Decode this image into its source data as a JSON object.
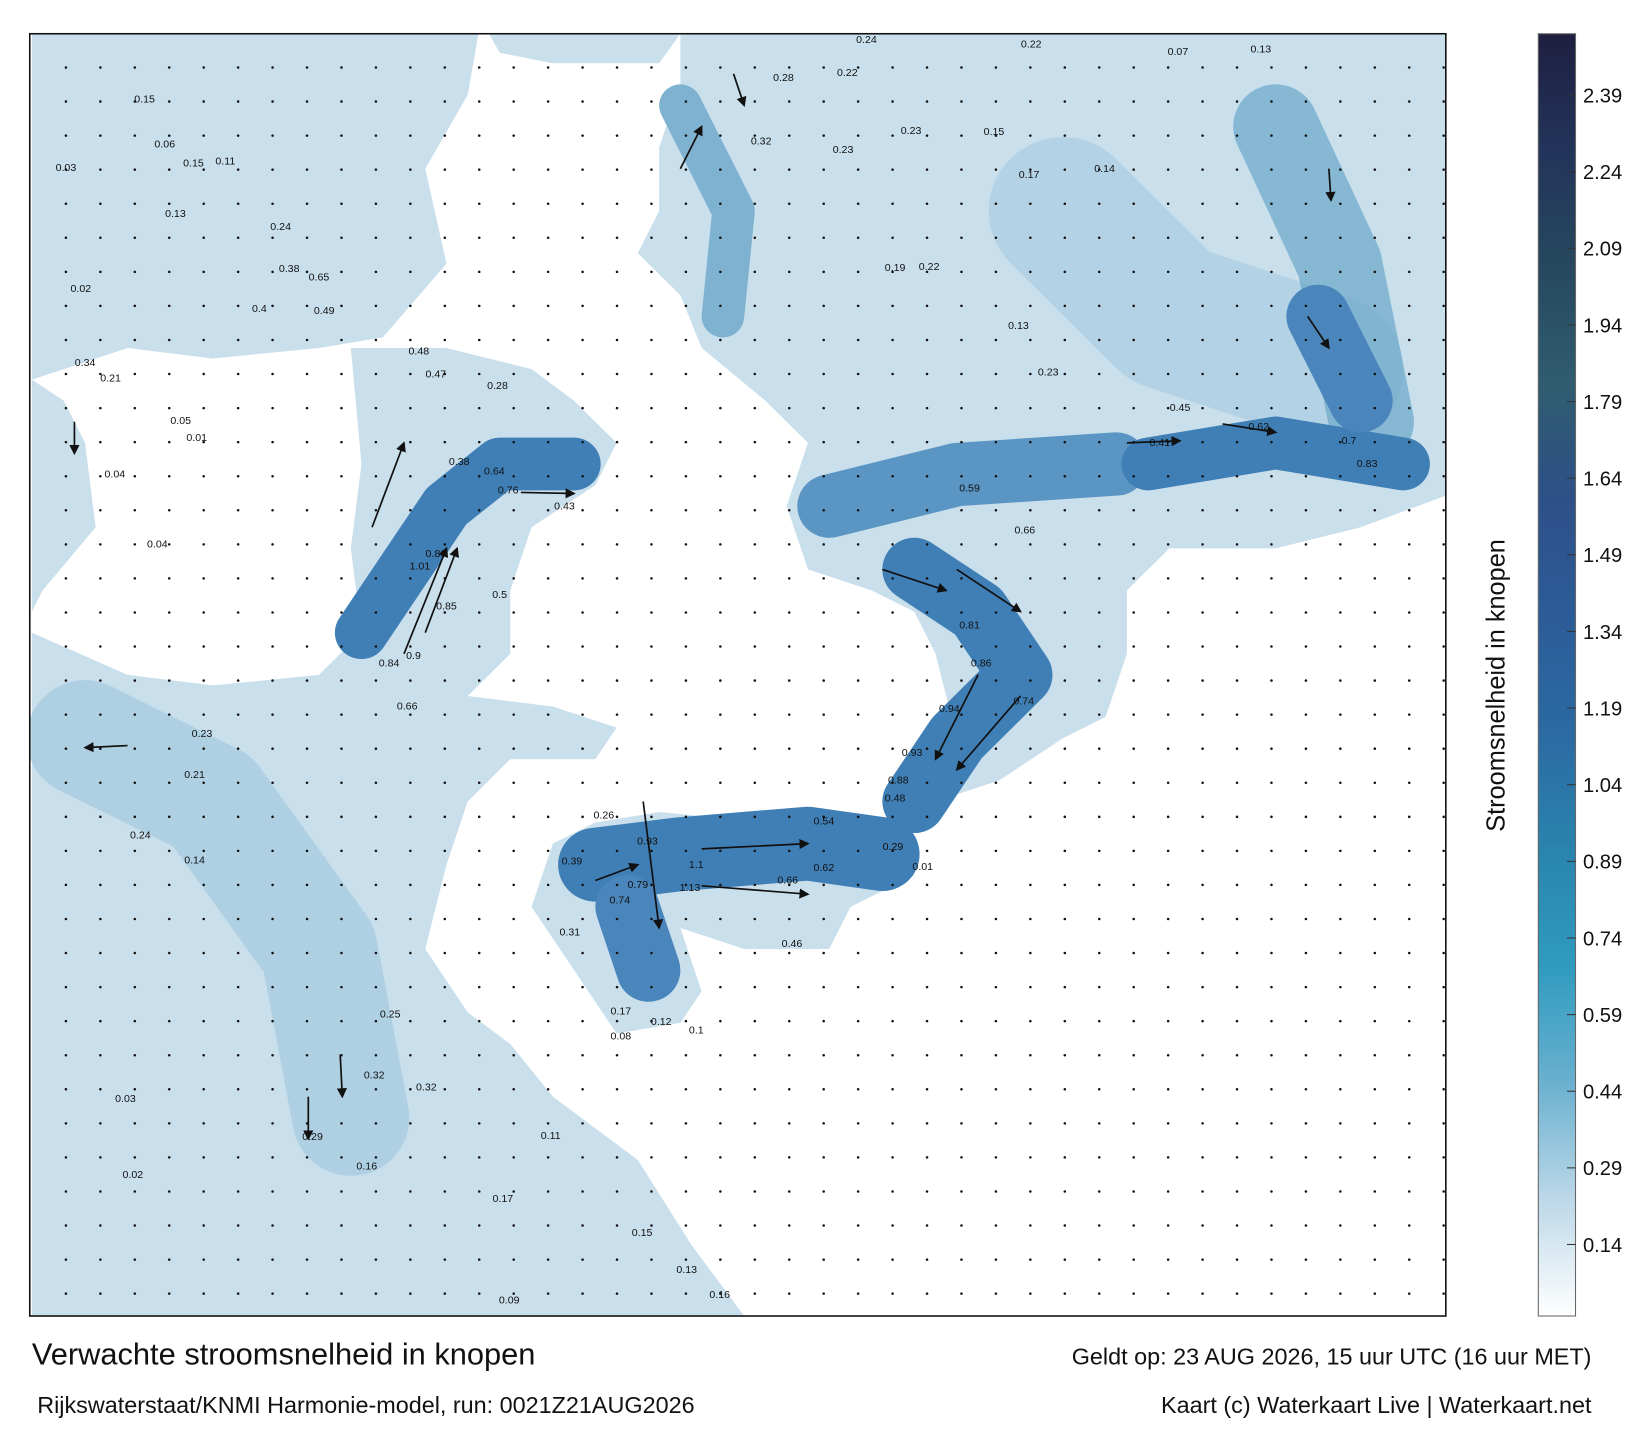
{
  "title": "Verwachte stroomsnelheid in knopen",
  "valid_time": "Geldt op: 23 AUG 2026, 15 uur UTC (16 uur MET)",
  "source": "Rijkswaterstaat/KNMI Harmonie-model, run: 0021Z21AUG2026",
  "credit": "Kaart (c) Waterkaart Live | Waterkaart.net",
  "colorbar": {
    "label": "Stroomsnelheid in knopen",
    "range": [
      0,
      2.51
    ],
    "ticks": [
      0.14,
      0.29,
      0.44,
      0.59,
      0.74,
      0.89,
      1.04,
      1.19,
      1.34,
      1.49,
      1.64,
      1.79,
      1.94,
      2.09,
      2.24,
      2.39
    ],
    "colors": [
      "#ffffff",
      "#bcd8e8",
      "#6ab0cf",
      "#2f9bbf",
      "#2a84ad",
      "#2b6aa3",
      "#2c5c98",
      "#2e5088",
      "#2f5d6f",
      "#27485e",
      "#22345a",
      "#1f1f40"
    ]
  },
  "map_labels": [
    0.15,
    0.06,
    0.03,
    0.15,
    0.11,
    0.13,
    0.24,
    0.38,
    0.65,
    0.4,
    0.49,
    0.02,
    0.34,
    0.21,
    0.05,
    0.01,
    0.04,
    0.04,
    0.48,
    0.47,
    0.28,
    0.38,
    0.64,
    0.76,
    0.43,
    1.01,
    0.86,
    0.85,
    0.9,
    0.84,
    0.66,
    0.5,
    0.23,
    0.21,
    0.24,
    0.14,
    0.25,
    0.32,
    0.29,
    0.16,
    0.02,
    0.03,
    0.28,
    0.22,
    0.24,
    0.22,
    0.07,
    0.13,
    0.32,
    0.23,
    0.23,
    0.15,
    0.17,
    0.14,
    0.19,
    0.22,
    0.13,
    0.23,
    0.41,
    0.45,
    0.62,
    0.7,
    0.83,
    0.59,
    0.66,
    0.81,
    0.86,
    0.94,
    0.74,
    0.93,
    0.88,
    0.48,
    0.29,
    0.01,
    0.26,
    0.93,
    1.1,
    1.13,
    0.79,
    0.74,
    0.66,
    0.62,
    0.54,
    0.46,
    0.31,
    0.39,
    0.17,
    0.12,
    0.08,
    0.1,
    0.17,
    0.15,
    0.13,
    0.16,
    0.09,
    0.32,
    0.11
  ]
}
